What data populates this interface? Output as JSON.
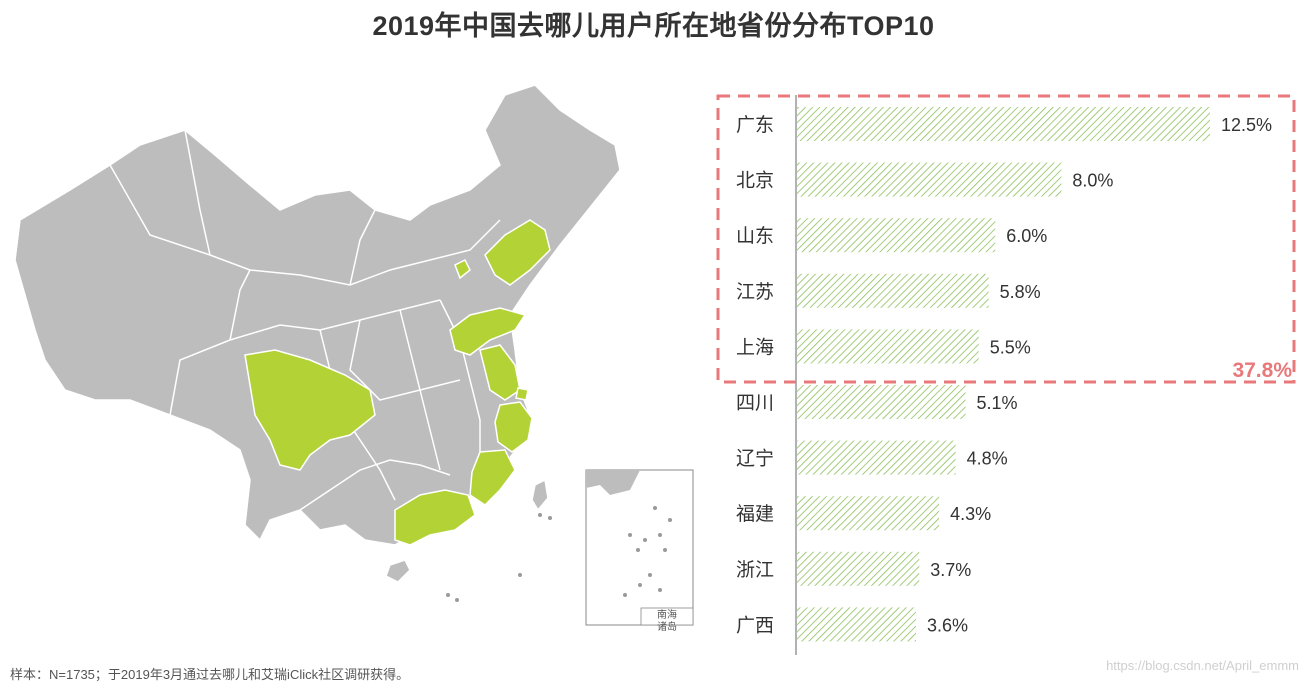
{
  "title": "2019年中国去哪儿用户所在地省份分布TOP10",
  "footnote": "样本：N=1735；于2019年3月通过去哪儿和艾瑞iClick社区调研获得。",
  "watermark": "https://blog.csdn.net/April_emmm",
  "map": {
    "inset_label_line1": "南海",
    "inset_label_line2": "诸岛",
    "highlight_color": "#b2d235",
    "base_color": "#bdbdbd"
  },
  "colors": {
    "bar_stripe": "#8cbf5a",
    "box_border": "#e9787a",
    "box_total": "#e9787a",
    "axis": "#666666"
  },
  "chart_data": {
    "type": "bar",
    "orientation": "horizontal",
    "categories": [
      "广东",
      "北京",
      "山东",
      "江苏",
      "上海",
      "四川",
      "辽宁",
      "福建",
      "浙江",
      "广西"
    ],
    "values": [
      12.5,
      8.0,
      6.0,
      5.8,
      5.5,
      5.1,
      4.8,
      4.3,
      3.7,
      3.6
    ],
    "value_labels": [
      "12.5%",
      "8.0%",
      "6.0%",
      "5.8%",
      "5.5%",
      "5.1%",
      "4.8%",
      "4.3%",
      "3.7%",
      "3.6%"
    ],
    "xlim": [
      0,
      13
    ],
    "highlight_top_n": 5,
    "highlight_total": "37.8%"
  }
}
